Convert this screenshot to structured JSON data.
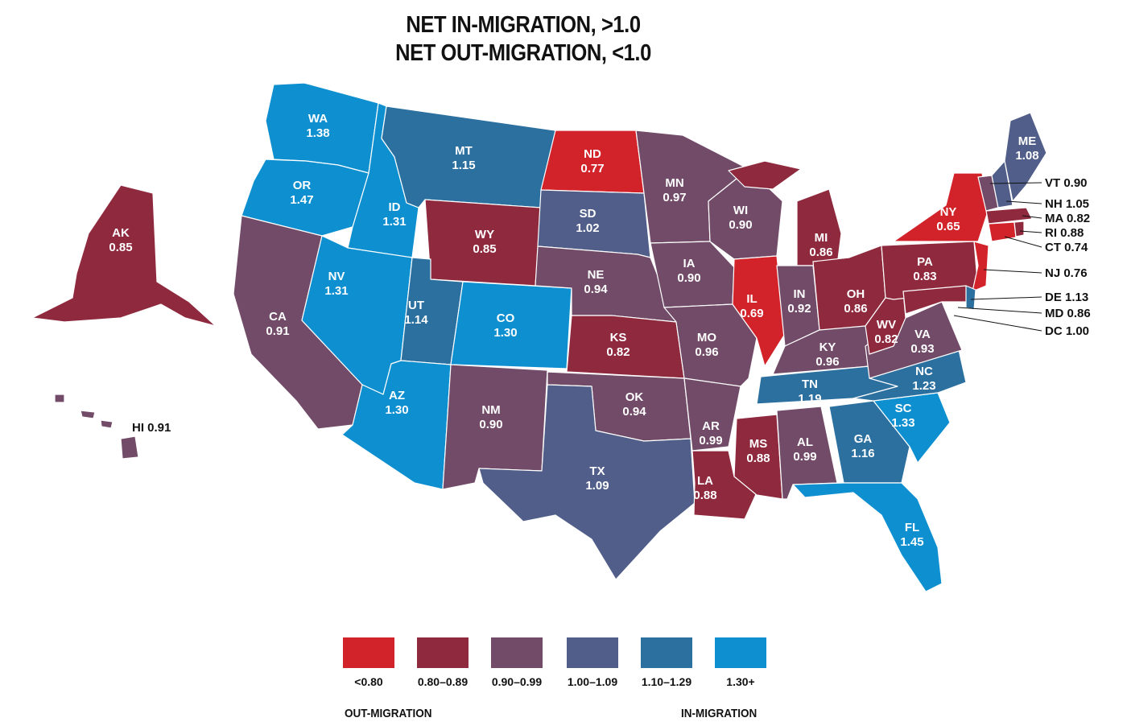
{
  "title": {
    "line1": "NET IN-MIGRATION, >1.0",
    "line2": "NET OUT-MIGRATION, <1.0"
  },
  "colors": {
    "bin0": "#d2232a",
    "bin1": "#8f2a3e",
    "bin2": "#714b68",
    "bin3": "#505e89",
    "bin4": "#2c70a0",
    "bin5": "#0e8fd0"
  },
  "legend": {
    "bins": [
      "<0.80",
      "0.80–0.89",
      "0.90–0.99",
      "1.00–1.09",
      "1.10–1.29",
      "1.30+"
    ],
    "out_label": "OUT-MIGRATION",
    "in_label": "IN-MIGRATION"
  },
  "states": [
    {
      "abbr": "WA",
      "value": "1.38"
    },
    {
      "abbr": "OR",
      "value": "1.47"
    },
    {
      "abbr": "CA",
      "value": "0.91"
    },
    {
      "abbr": "ID",
      "value": "1.31"
    },
    {
      "abbr": "NV",
      "value": "1.31"
    },
    {
      "abbr": "MT",
      "value": "1.15"
    },
    {
      "abbr": "WY",
      "value": "0.85"
    },
    {
      "abbr": "UT",
      "value": "1.14"
    },
    {
      "abbr": "AZ",
      "value": "1.30"
    },
    {
      "abbr": "CO",
      "value": "1.30"
    },
    {
      "abbr": "NM",
      "value": "0.90"
    },
    {
      "abbr": "ND",
      "value": "0.77"
    },
    {
      "abbr": "SD",
      "value": "1.02"
    },
    {
      "abbr": "NE",
      "value": "0.94"
    },
    {
      "abbr": "KS",
      "value": "0.82"
    },
    {
      "abbr": "OK",
      "value": "0.94"
    },
    {
      "abbr": "TX",
      "value": "1.09"
    },
    {
      "abbr": "MN",
      "value": "0.97"
    },
    {
      "abbr": "IA",
      "value": "0.90"
    },
    {
      "abbr": "MO",
      "value": "0.96"
    },
    {
      "abbr": "AR",
      "value": "0.99"
    },
    {
      "abbr": "LA",
      "value": "0.88"
    },
    {
      "abbr": "WI",
      "value": "0.90"
    },
    {
      "abbr": "IL",
      "value": "0.69"
    },
    {
      "abbr": "MI",
      "value": "0.86"
    },
    {
      "abbr": "IN",
      "value": "0.92"
    },
    {
      "abbr": "OH",
      "value": "0.86"
    },
    {
      "abbr": "KY",
      "value": "0.96"
    },
    {
      "abbr": "TN",
      "value": "1.19"
    },
    {
      "abbr": "MS",
      "value": "0.88"
    },
    {
      "abbr": "AL",
      "value": "0.99"
    },
    {
      "abbr": "GA",
      "value": "1.16"
    },
    {
      "abbr": "FL",
      "value": "1.45"
    },
    {
      "abbr": "SC",
      "value": "1.33"
    },
    {
      "abbr": "NC",
      "value": "1.23"
    },
    {
      "abbr": "VA",
      "value": "0.93"
    },
    {
      "abbr": "WV",
      "value": "0.82"
    },
    {
      "abbr": "PA",
      "value": "0.83"
    },
    {
      "abbr": "NY",
      "value": "0.65"
    },
    {
      "abbr": "ME",
      "value": "1.08"
    },
    {
      "abbr": "AK",
      "value": "0.85"
    }
  ],
  "callouts": [
    {
      "abbr": "VT",
      "value": "0.90"
    },
    {
      "abbr": "NH",
      "value": "1.05"
    },
    {
      "abbr": "MA",
      "value": "0.82"
    },
    {
      "abbr": "RI",
      "value": "0.88"
    },
    {
      "abbr": "CT",
      "value": "0.74"
    },
    {
      "abbr": "NJ",
      "value": "0.76"
    },
    {
      "abbr": "DE",
      "value": "1.13"
    },
    {
      "abbr": "MD",
      "value": "0.86"
    },
    {
      "abbr": "DC",
      "value": "1.00"
    },
    {
      "abbr": "HI",
      "value": "0.91"
    }
  ]
}
